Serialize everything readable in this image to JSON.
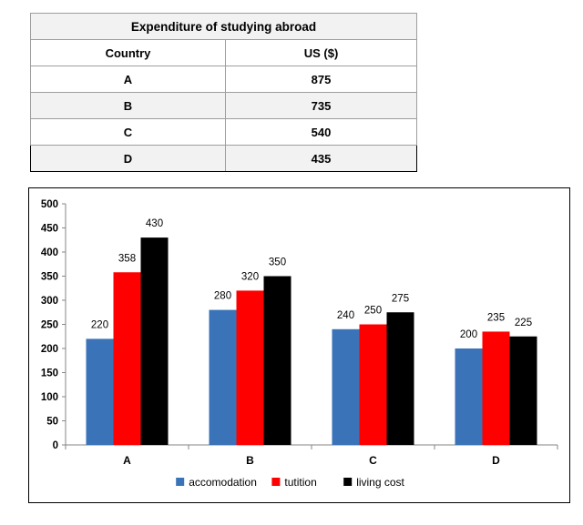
{
  "table": {
    "title": "Expenditure of studying abroad",
    "headers": [
      "Country",
      "US ($)"
    ],
    "rows": [
      [
        "A",
        "875"
      ],
      [
        "B",
        "735"
      ],
      [
        "C",
        "540"
      ],
      [
        "D",
        "435"
      ]
    ]
  },
  "chart_data": {
    "type": "bar",
    "categories": [
      "A",
      "B",
      "C",
      "D"
    ],
    "series": [
      {
        "name": "accomodation",
        "color": "#3a73b8",
        "values": [
          220,
          280,
          240,
          200
        ]
      },
      {
        "name": "tutition",
        "color": "#ff0000",
        "values": [
          358,
          320,
          250,
          235
        ]
      },
      {
        "name": "living cost",
        "color": "#000000",
        "values": [
          430,
          350,
          275,
          225
        ]
      }
    ],
    "ylim": [
      0,
      500
    ],
    "yticks": [
      0,
      50,
      100,
      150,
      200,
      250,
      300,
      350,
      400,
      450,
      500
    ],
    "grid": false,
    "legend_position": "bottom",
    "title": "",
    "xlabel": "",
    "ylabel": ""
  }
}
